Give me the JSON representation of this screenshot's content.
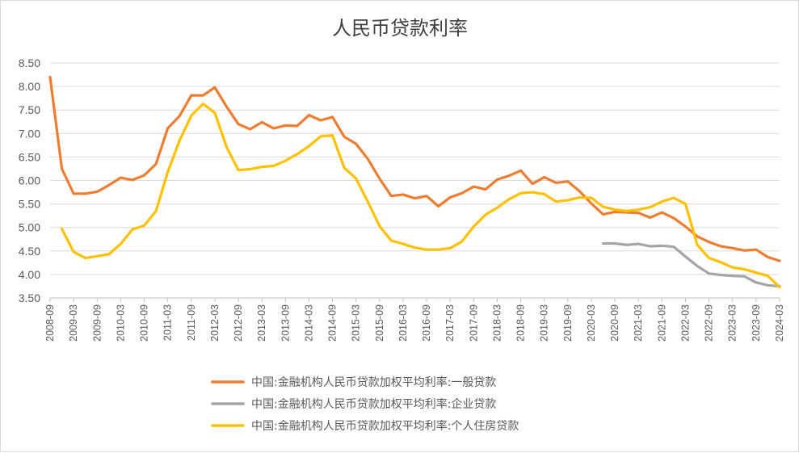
{
  "chart_data": {
    "type": "line",
    "title": "人民币贷款利率",
    "xlabel": "",
    "ylabel": "",
    "ylim": [
      3.5,
      8.5
    ],
    "yticks": [
      "3.50",
      "4.00",
      "4.50",
      "5.00",
      "5.50",
      "6.00",
      "6.50",
      "7.00",
      "7.50",
      "8.00",
      "8.50"
    ],
    "grid": true,
    "legend_position": "bottom",
    "x_tick_labels": [
      "2008-09",
      "2009-03",
      "2009-09",
      "2010-03",
      "2010-09",
      "2011-03",
      "2011-09",
      "2012-03",
      "2012-09",
      "2013-03",
      "2013-09",
      "2014-03",
      "2014-09",
      "2015-03",
      "2015-09",
      "2016-03",
      "2016-09",
      "2017-03",
      "2017-09",
      "2018-03",
      "2018-09",
      "2019-03",
      "2019-09",
      "2020-03",
      "2020-09",
      "2021-03",
      "2021-09",
      "2022-03",
      "2022-09",
      "2023-03",
      "2023-09",
      "2024-03"
    ],
    "x": [
      "2008-09",
      "2008-12",
      "2009-03",
      "2009-06",
      "2009-09",
      "2009-12",
      "2010-03",
      "2010-06",
      "2010-09",
      "2010-12",
      "2011-03",
      "2011-06",
      "2011-09",
      "2011-12",
      "2012-03",
      "2012-06",
      "2012-09",
      "2012-12",
      "2013-03",
      "2013-06",
      "2013-09",
      "2013-12",
      "2014-03",
      "2014-06",
      "2014-09",
      "2014-12",
      "2015-03",
      "2015-06",
      "2015-09",
      "2015-12",
      "2016-03",
      "2016-06",
      "2016-09",
      "2016-12",
      "2017-03",
      "2017-06",
      "2017-09",
      "2017-12",
      "2018-03",
      "2018-06",
      "2018-09",
      "2018-12",
      "2019-03",
      "2019-06",
      "2019-09",
      "2019-12",
      "2020-03",
      "2020-06",
      "2020-09",
      "2020-12",
      "2021-03",
      "2021-06",
      "2021-09",
      "2021-12",
      "2022-03",
      "2022-06",
      "2022-09",
      "2022-12",
      "2023-03",
      "2023-06",
      "2023-09",
      "2023-12",
      "2024-03"
    ],
    "series": [
      {
        "name": "中国:金融机构人民币贷款加权平均利率:一般贷款",
        "color": "#ED7D31",
        "values": [
          8.2,
          6.25,
          5.72,
          5.72,
          5.76,
          5.9,
          6.06,
          6.01,
          6.11,
          6.35,
          7.11,
          7.37,
          7.81,
          7.81,
          7.98,
          7.57,
          7.2,
          7.09,
          7.24,
          7.11,
          7.17,
          7.16,
          7.39,
          7.28,
          7.35,
          6.93,
          6.78,
          6.46,
          6.04,
          5.67,
          5.7,
          5.62,
          5.67,
          5.45,
          5.64,
          5.73,
          5.87,
          5.81,
          6.02,
          6.1,
          6.21,
          5.93,
          6.07,
          5.95,
          5.98,
          5.77,
          5.51,
          5.28,
          5.33,
          5.32,
          5.31,
          5.21,
          5.32,
          5.2,
          5.02,
          4.81,
          4.69,
          4.6,
          4.56,
          4.51,
          4.53,
          4.37,
          4.29
        ]
      },
      {
        "name": "中国:金融机构人民币贷款加权平均利率:企业贷款",
        "color": "#A5A5A5",
        "values": [
          null,
          null,
          null,
          null,
          null,
          null,
          null,
          null,
          null,
          null,
          null,
          null,
          null,
          null,
          null,
          null,
          null,
          null,
          null,
          null,
          null,
          null,
          null,
          null,
          null,
          null,
          null,
          null,
          null,
          null,
          null,
          null,
          null,
          null,
          null,
          null,
          null,
          null,
          null,
          null,
          null,
          null,
          null,
          null,
          null,
          null,
          null,
          4.66,
          4.66,
          4.63,
          4.65,
          4.6,
          4.61,
          4.59,
          4.38,
          4.18,
          4.02,
          3.99,
          3.97,
          3.96,
          3.83,
          3.77,
          3.75
        ]
      },
      {
        "name": "中国:金融机构人民币贷款加权平均利率:个人住房贷款",
        "color": "#FFC000",
        "values": [
          null,
          4.97,
          4.48,
          4.35,
          4.39,
          4.43,
          4.65,
          4.96,
          5.04,
          5.35,
          6.18,
          6.85,
          7.38,
          7.63,
          7.44,
          6.71,
          6.22,
          6.24,
          6.29,
          6.31,
          6.42,
          6.56,
          6.73,
          6.94,
          6.96,
          6.27,
          6.04,
          5.55,
          5.03,
          4.72,
          4.65,
          4.57,
          4.53,
          4.53,
          4.56,
          4.7,
          5.02,
          5.27,
          5.42,
          5.6,
          5.73,
          5.75,
          5.71,
          5.55,
          5.58,
          5.64,
          5.63,
          5.44,
          5.38,
          5.35,
          5.38,
          5.43,
          5.55,
          5.63,
          5.5,
          4.63,
          4.35,
          4.26,
          4.15,
          4.11,
          4.04,
          3.97,
          3.73
        ]
      }
    ]
  }
}
